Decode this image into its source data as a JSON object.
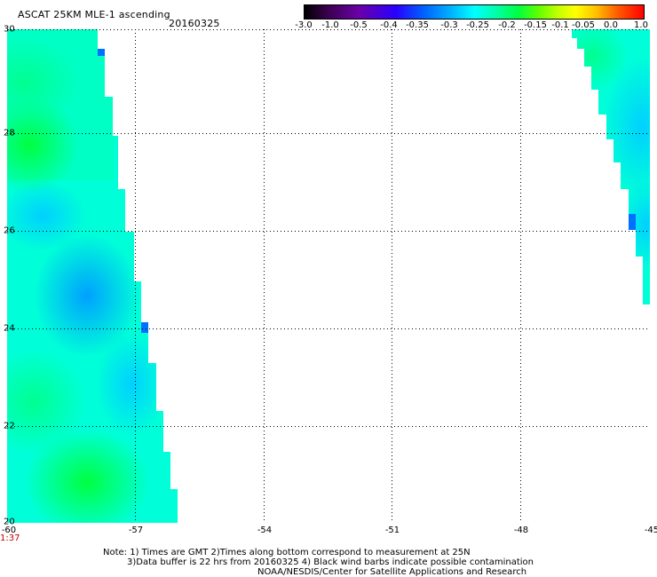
{
  "header": {
    "title": "ASCAT 25KM MLE-1 ascending",
    "date": "20160325"
  },
  "colorbar": {
    "labels": [
      "-3.0",
      "-1.0",
      "-0.5",
      "-0.4",
      "-0.35",
      "-0.3",
      "-0.25",
      "-0.2",
      "-0.15",
      "-0.1",
      "-0.05",
      "0.0",
      "1.0"
    ]
  },
  "axes": {
    "y_ticks": [
      "30",
      "28",
      "26",
      "24",
      "22",
      "20"
    ],
    "x_ticks": [
      "-60",
      "-57",
      "-54",
      "-51",
      "-48",
      "-45"
    ],
    "time_label": "1:37"
  },
  "notes": {
    "line1": "Note: 1) Times are GMT 2)Times along bottom correspond to measurement at 25N",
    "line2": "3)Data buffer is 22 hrs from 20160325 4) Black wind barbs indicate possible contamination",
    "line3": "NOAA/NESDIS/Center for Satellite Applications and Research"
  },
  "colors": {
    "low": "#0050ff",
    "mid": "#00ffff",
    "high": "#00ff40"
  }
}
